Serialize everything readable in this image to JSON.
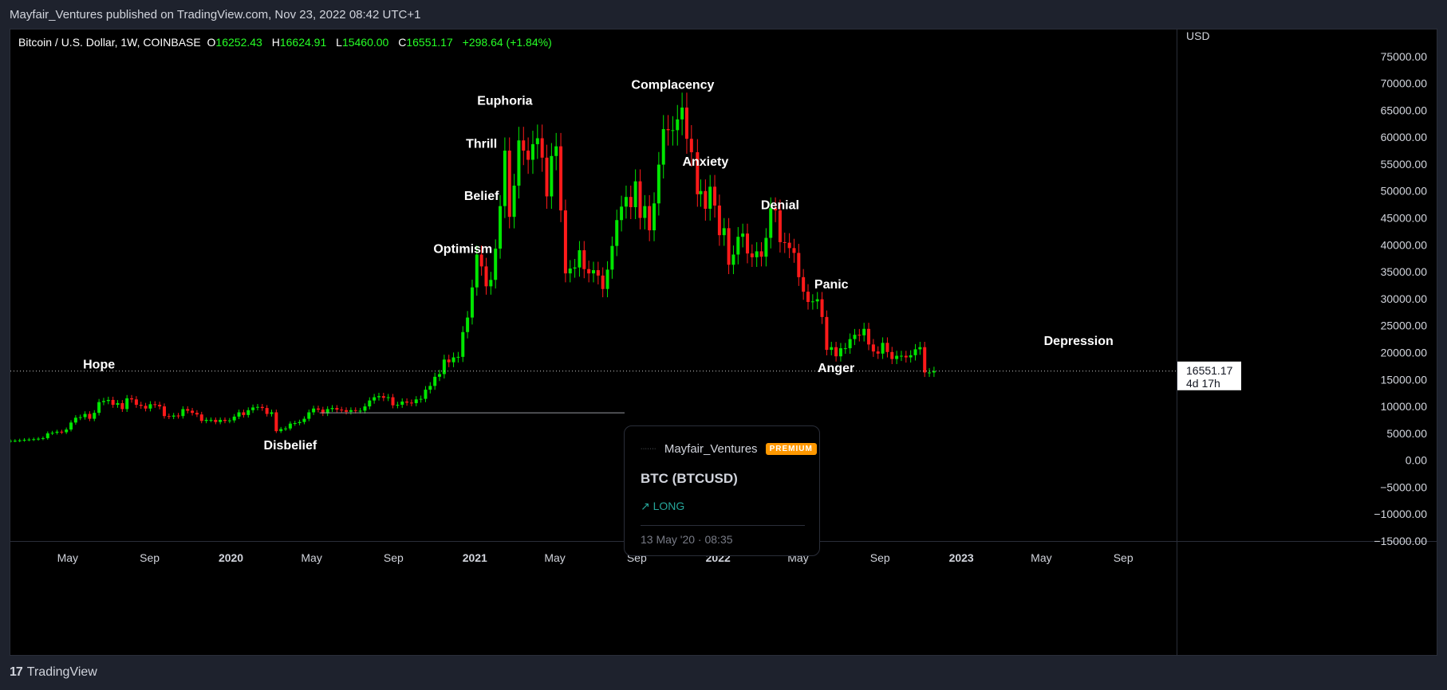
{
  "header": {
    "published_text": "Mayfair_Ventures published on TradingView.com, Nov 23, 2022 08:42 UTC+1"
  },
  "legend": {
    "symbol_text": "Bitcoin / U.S. Dollar, 1W, COINBASE",
    "open_label": "O",
    "open": "16252.43",
    "high_label": "H",
    "high": "16624.91",
    "low_label": "L",
    "low": "15460.00",
    "close_label": "C",
    "close": "16551.17",
    "change": "+298.64 (+1.84%)"
  },
  "idea_card": {
    "avatar_text": "·······",
    "author": "Mayfair_Ventures",
    "badge": "PREMIUM",
    "symbol": "BTC (BTCUSD)",
    "direction": "↗ LONG",
    "date": "13 May '20 · 08:35"
  },
  "footer": {
    "logo_mark": "17",
    "logo_text": "TradingView"
  },
  "colors": {
    "up": "#00e600",
    "down": "#ff1a1a",
    "background": "#000000",
    "panel": "#1e222d",
    "accent_badge": "#ff9800",
    "long": "#26a69a"
  },
  "chart_data": {
    "type": "candlestick",
    "currency_label": "USD",
    "ylim": [
      -15000,
      80000
    ],
    "y_ticks": [
      -15000,
      -10000,
      -5000,
      0,
      5000,
      10000,
      15000,
      20000,
      25000,
      30000,
      35000,
      40000,
      45000,
      50000,
      55000,
      60000,
      65000,
      70000,
      75000
    ],
    "y_tick_labels": [
      "−15000.00",
      "−10000.00",
      "−5000.00",
      "0.00",
      "5000.00",
      "10000.00",
      "15000.00",
      "20000.00",
      "25000.00",
      "30000.00",
      "35000.00",
      "40000.00",
      "45000.00",
      "50000.00",
      "55000.00",
      "60000.00",
      "65000.00",
      "70000.00",
      "75000.00"
    ],
    "x_range": [
      "2019-02-04",
      "2023-11-20"
    ],
    "x_ticks": [
      {
        "date": "2019-05-01",
        "label": "May",
        "bold": false
      },
      {
        "date": "2019-09-01",
        "label": "Sep",
        "bold": false
      },
      {
        "date": "2020-01-01",
        "label": "2020",
        "bold": true
      },
      {
        "date": "2020-05-01",
        "label": "May",
        "bold": false
      },
      {
        "date": "2020-09-01",
        "label": "Sep",
        "bold": false
      },
      {
        "date": "2021-01-01",
        "label": "2021",
        "bold": true
      },
      {
        "date": "2021-05-01",
        "label": "May",
        "bold": false
      },
      {
        "date": "2021-09-01",
        "label": "Sep",
        "bold": false
      },
      {
        "date": "2022-01-01",
        "label": "2022",
        "bold": true
      },
      {
        "date": "2022-05-01",
        "label": "May",
        "bold": false
      },
      {
        "date": "2022-09-01",
        "label": "Sep",
        "bold": false
      },
      {
        "date": "2023-01-01",
        "label": "2023",
        "bold": true
      },
      {
        "date": "2023-05-01",
        "label": "May",
        "bold": false
      },
      {
        "date": "2023-09-01",
        "label": "Sep",
        "bold": false
      }
    ],
    "close_series": [
      [
        "2019-02-04",
        3600
      ],
      [
        "2019-02-11",
        3620
      ],
      [
        "2019-02-18",
        3700
      ],
      [
        "2019-02-25",
        3800
      ],
      [
        "2019-03-04",
        3850
      ],
      [
        "2019-03-11",
        3900
      ],
      [
        "2019-03-18",
        4000
      ],
      [
        "2019-03-25",
        4100
      ],
      [
        "2019-04-01",
        5000
      ],
      [
        "2019-04-08",
        5100
      ],
      [
        "2019-04-15",
        5300
      ],
      [
        "2019-04-22",
        5200
      ],
      [
        "2019-04-29",
        5700
      ],
      [
        "2019-05-06",
        7000
      ],
      [
        "2019-05-13",
        7900
      ],
      [
        "2019-05-20",
        8000
      ],
      [
        "2019-05-27",
        8600
      ],
      [
        "2019-06-03",
        7700
      ],
      [
        "2019-06-10",
        8800
      ],
      [
        "2019-06-17",
        10800
      ],
      [
        "2019-06-24",
        11000
      ],
      [
        "2019-07-01",
        11200
      ],
      [
        "2019-07-08",
        10300
      ],
      [
        "2019-07-15",
        10600
      ],
      [
        "2019-07-22",
        9500
      ],
      [
        "2019-07-29",
        11500
      ],
      [
        "2019-08-05",
        11300
      ],
      [
        "2019-08-12",
        10300
      ],
      [
        "2019-08-19",
        10100
      ],
      [
        "2019-08-26",
        9600
      ],
      [
        "2019-09-02",
        10400
      ],
      [
        "2019-09-09",
        10300
      ],
      [
        "2019-09-16",
        10000
      ],
      [
        "2019-09-23",
        8200
      ],
      [
        "2019-09-30",
        8100
      ],
      [
        "2019-10-07",
        8300
      ],
      [
        "2019-10-14",
        8200
      ],
      [
        "2019-10-21",
        9500
      ],
      [
        "2019-10-28",
        9200
      ],
      [
        "2019-11-04",
        8800
      ],
      [
        "2019-11-11",
        8500
      ],
      [
        "2019-11-18",
        7300
      ],
      [
        "2019-11-25",
        7500
      ],
      [
        "2019-12-02",
        7500
      ],
      [
        "2019-12-09",
        7100
      ],
      [
        "2019-12-16",
        7500
      ],
      [
        "2019-12-23",
        7300
      ],
      [
        "2019-12-30",
        7400
      ],
      [
        "2020-01-06",
        8100
      ],
      [
        "2020-01-13",
        8900
      ],
      [
        "2020-01-20",
        8400
      ],
      [
        "2020-01-27",
        9300
      ],
      [
        "2020-02-03",
        9800
      ],
      [
        "2020-02-10",
        9900
      ],
      [
        "2020-02-17",
        9700
      ],
      [
        "2020-02-24",
        8600
      ],
      [
        "2020-03-02",
        8900
      ],
      [
        "2020-03-09",
        5400
      ],
      [
        "2020-03-16",
        5800
      ],
      [
        "2020-03-23",
        5900
      ],
      [
        "2020-03-30",
        6800
      ],
      [
        "2020-04-06",
        6900
      ],
      [
        "2020-04-13",
        7100
      ],
      [
        "2020-04-20",
        7700
      ],
      [
        "2020-04-27",
        8900
      ],
      [
        "2020-05-04",
        9600
      ],
      [
        "2020-05-11",
        9400
      ],
      [
        "2020-05-18",
        8700
      ],
      [
        "2020-05-25",
        9500
      ],
      [
        "2020-06-01",
        9700
      ],
      [
        "2020-06-08",
        9400
      ],
      [
        "2020-06-15",
        9300
      ],
      [
        "2020-06-22",
        9000
      ],
      [
        "2020-06-29",
        9300
      ],
      [
        "2020-07-06",
        9200
      ],
      [
        "2020-07-13",
        9200
      ],
      [
        "2020-07-20",
        10000
      ],
      [
        "2020-07-27",
        11100
      ],
      [
        "2020-08-03",
        11700
      ],
      [
        "2020-08-10",
        11900
      ],
      [
        "2020-08-17",
        11600
      ],
      [
        "2020-08-24",
        11700
      ],
      [
        "2020-08-31",
        10200
      ],
      [
        "2020-09-07",
        10300
      ],
      [
        "2020-09-14",
        10900
      ],
      [
        "2020-09-21",
        10700
      ],
      [
        "2020-09-28",
        10600
      ],
      [
        "2020-10-05",
        11300
      ],
      [
        "2020-10-12",
        11400
      ],
      [
        "2020-10-19",
        13100
      ],
      [
        "2020-10-26",
        13800
      ],
      [
        "2020-11-02",
        15500
      ],
      [
        "2020-11-09",
        16000
      ],
      [
        "2020-11-16",
        18700
      ],
      [
        "2020-11-23",
        18200
      ],
      [
        "2020-11-30",
        19100
      ],
      [
        "2020-12-07",
        19200
      ],
      [
        "2020-12-14",
        23800
      ],
      [
        "2020-12-21",
        26500
      ],
      [
        "2020-12-28",
        32100
      ],
      [
        "2021-01-04",
        38200
      ],
      [
        "2021-01-11",
        36000
      ],
      [
        "2021-01-18",
        32300
      ],
      [
        "2021-01-25",
        33500
      ],
      [
        "2021-02-01",
        39300
      ],
      [
        "2021-02-08",
        47200
      ],
      [
        "2021-02-15",
        57500
      ],
      [
        "2021-02-22",
        45200
      ],
      [
        "2021-03-01",
        51000
      ],
      [
        "2021-03-08",
        59400
      ],
      [
        "2021-03-15",
        57500
      ],
      [
        "2021-03-22",
        55800
      ],
      [
        "2021-03-29",
        58700
      ],
      [
        "2021-04-05",
        59800
      ],
      [
        "2021-04-12",
        56200
      ],
      [
        "2021-04-19",
        49000
      ],
      [
        "2021-04-26",
        56500
      ],
      [
        "2021-05-03",
        58300
      ],
      [
        "2021-05-10",
        46400
      ],
      [
        "2021-05-17",
        34700
      ],
      [
        "2021-05-24",
        35600
      ],
      [
        "2021-05-31",
        35800
      ],
      [
        "2021-06-07",
        39000
      ],
      [
        "2021-06-14",
        35500
      ],
      [
        "2021-06-21",
        34700
      ],
      [
        "2021-06-28",
        35300
      ],
      [
        "2021-07-05",
        34300
      ],
      [
        "2021-07-12",
        31800
      ],
      [
        "2021-07-19",
        35400
      ],
      [
        "2021-07-26",
        39800
      ],
      [
        "2021-08-02",
        44600
      ],
      [
        "2021-08-09",
        47100
      ],
      [
        "2021-08-16",
        48900
      ],
      [
        "2021-08-23",
        47000
      ],
      [
        "2021-08-30",
        51800
      ],
      [
        "2021-09-06",
        45000
      ],
      [
        "2021-09-13",
        47200
      ],
      [
        "2021-09-20",
        42700
      ],
      [
        "2021-09-27",
        47700
      ],
      [
        "2021-10-04",
        54900
      ],
      [
        "2021-10-11",
        61500
      ],
      [
        "2021-10-18",
        61300
      ],
      [
        "2021-10-25",
        61300
      ],
      [
        "2021-11-01",
        63300
      ],
      [
        "2021-11-08",
        65500
      ],
      [
        "2021-11-15",
        59700
      ],
      [
        "2021-11-22",
        57200
      ],
      [
        "2021-12-01",
        49400
      ],
      [
        "2021-12-06",
        50000
      ],
      [
        "2021-12-13",
        46700
      ],
      [
        "2021-12-20",
        50800
      ],
      [
        "2021-12-27",
        47300
      ],
      [
        "2022-01-03",
        41800
      ],
      [
        "2022-01-10",
        43100
      ],
      [
        "2022-01-17",
        36300
      ],
      [
        "2022-01-24",
        38200
      ],
      [
        "2022-01-31",
        41500
      ],
      [
        "2022-02-07",
        42100
      ],
      [
        "2022-02-14",
        38400
      ],
      [
        "2022-02-21",
        37700
      ],
      [
        "2022-02-28",
        38800
      ],
      [
        "2022-03-07",
        37800
      ],
      [
        "2022-03-14",
        41300
      ],
      [
        "2022-03-21",
        46800
      ],
      [
        "2022-03-28",
        46400
      ],
      [
        "2022-04-04",
        40500
      ],
      [
        "2022-04-11",
        40400
      ],
      [
        "2022-04-18",
        39400
      ],
      [
        "2022-04-25",
        38500
      ],
      [
        "2022-05-02",
        34000
      ],
      [
        "2022-05-09",
        31300
      ],
      [
        "2022-05-16",
        29400
      ],
      [
        "2022-05-23",
        29500
      ],
      [
        "2022-05-30",
        29900
      ],
      [
        "2022-06-06",
        26600
      ],
      [
        "2022-06-13",
        20500
      ],
      [
        "2022-06-20",
        21000
      ],
      [
        "2022-06-27",
        19300
      ],
      [
        "2022-07-04",
        20800
      ],
      [
        "2022-07-11",
        20800
      ],
      [
        "2022-07-18",
        22500
      ],
      [
        "2022-07-25",
        23300
      ],
      [
        "2022-08-01",
        23200
      ],
      [
        "2022-08-08",
        24400
      ],
      [
        "2022-08-15",
        21500
      ],
      [
        "2022-08-22",
        20200
      ],
      [
        "2022-08-29",
        19800
      ],
      [
        "2022-09-05",
        21800
      ],
      [
        "2022-09-12",
        20100
      ],
      [
        "2022-09-19",
        18800
      ],
      [
        "2022-09-26",
        19400
      ],
      [
        "2022-10-03",
        19400
      ],
      [
        "2022-10-10",
        19100
      ],
      [
        "2022-10-17",
        19500
      ],
      [
        "2022-10-24",
        20600
      ],
      [
        "2022-10-31",
        21000
      ],
      [
        "2022-11-07",
        16300
      ],
      [
        "2022-11-14",
        16300
      ],
      [
        "2022-11-21",
        16551.17
      ]
    ],
    "last_price": "16551.17",
    "countdown": "4d 17h",
    "idea_entry": {
      "date": "2020-05-13",
      "price": 8800
    },
    "annotations": [
      {
        "text": "Hope",
        "date": "2019-06-17",
        "price": 17000
      },
      {
        "text": "Disbelief",
        "date": "2020-03-30",
        "price": 2000
      },
      {
        "text": "Optimism",
        "date": "2020-12-14",
        "price": 38500
      },
      {
        "text": "Belief",
        "date": "2021-01-11",
        "price": 48300
      },
      {
        "text": "Thrill",
        "date": "2021-01-11",
        "price": 58000
      },
      {
        "text": "Euphoria",
        "date": "2021-02-15",
        "price": 66000
      },
      {
        "text": "Complacency",
        "date": "2021-10-25",
        "price": 69000
      },
      {
        "text": "Anxiety",
        "date": "2021-12-13",
        "price": 54700
      },
      {
        "text": "Denial",
        "date": "2022-04-04",
        "price": 46600
      },
      {
        "text": "Panic",
        "date": "2022-06-20",
        "price": 31900
      },
      {
        "text": "Anger",
        "date": "2022-06-27",
        "price": 16400
      },
      {
        "text": "Depression",
        "date": "2023-06-26",
        "price": 21400
      }
    ]
  }
}
